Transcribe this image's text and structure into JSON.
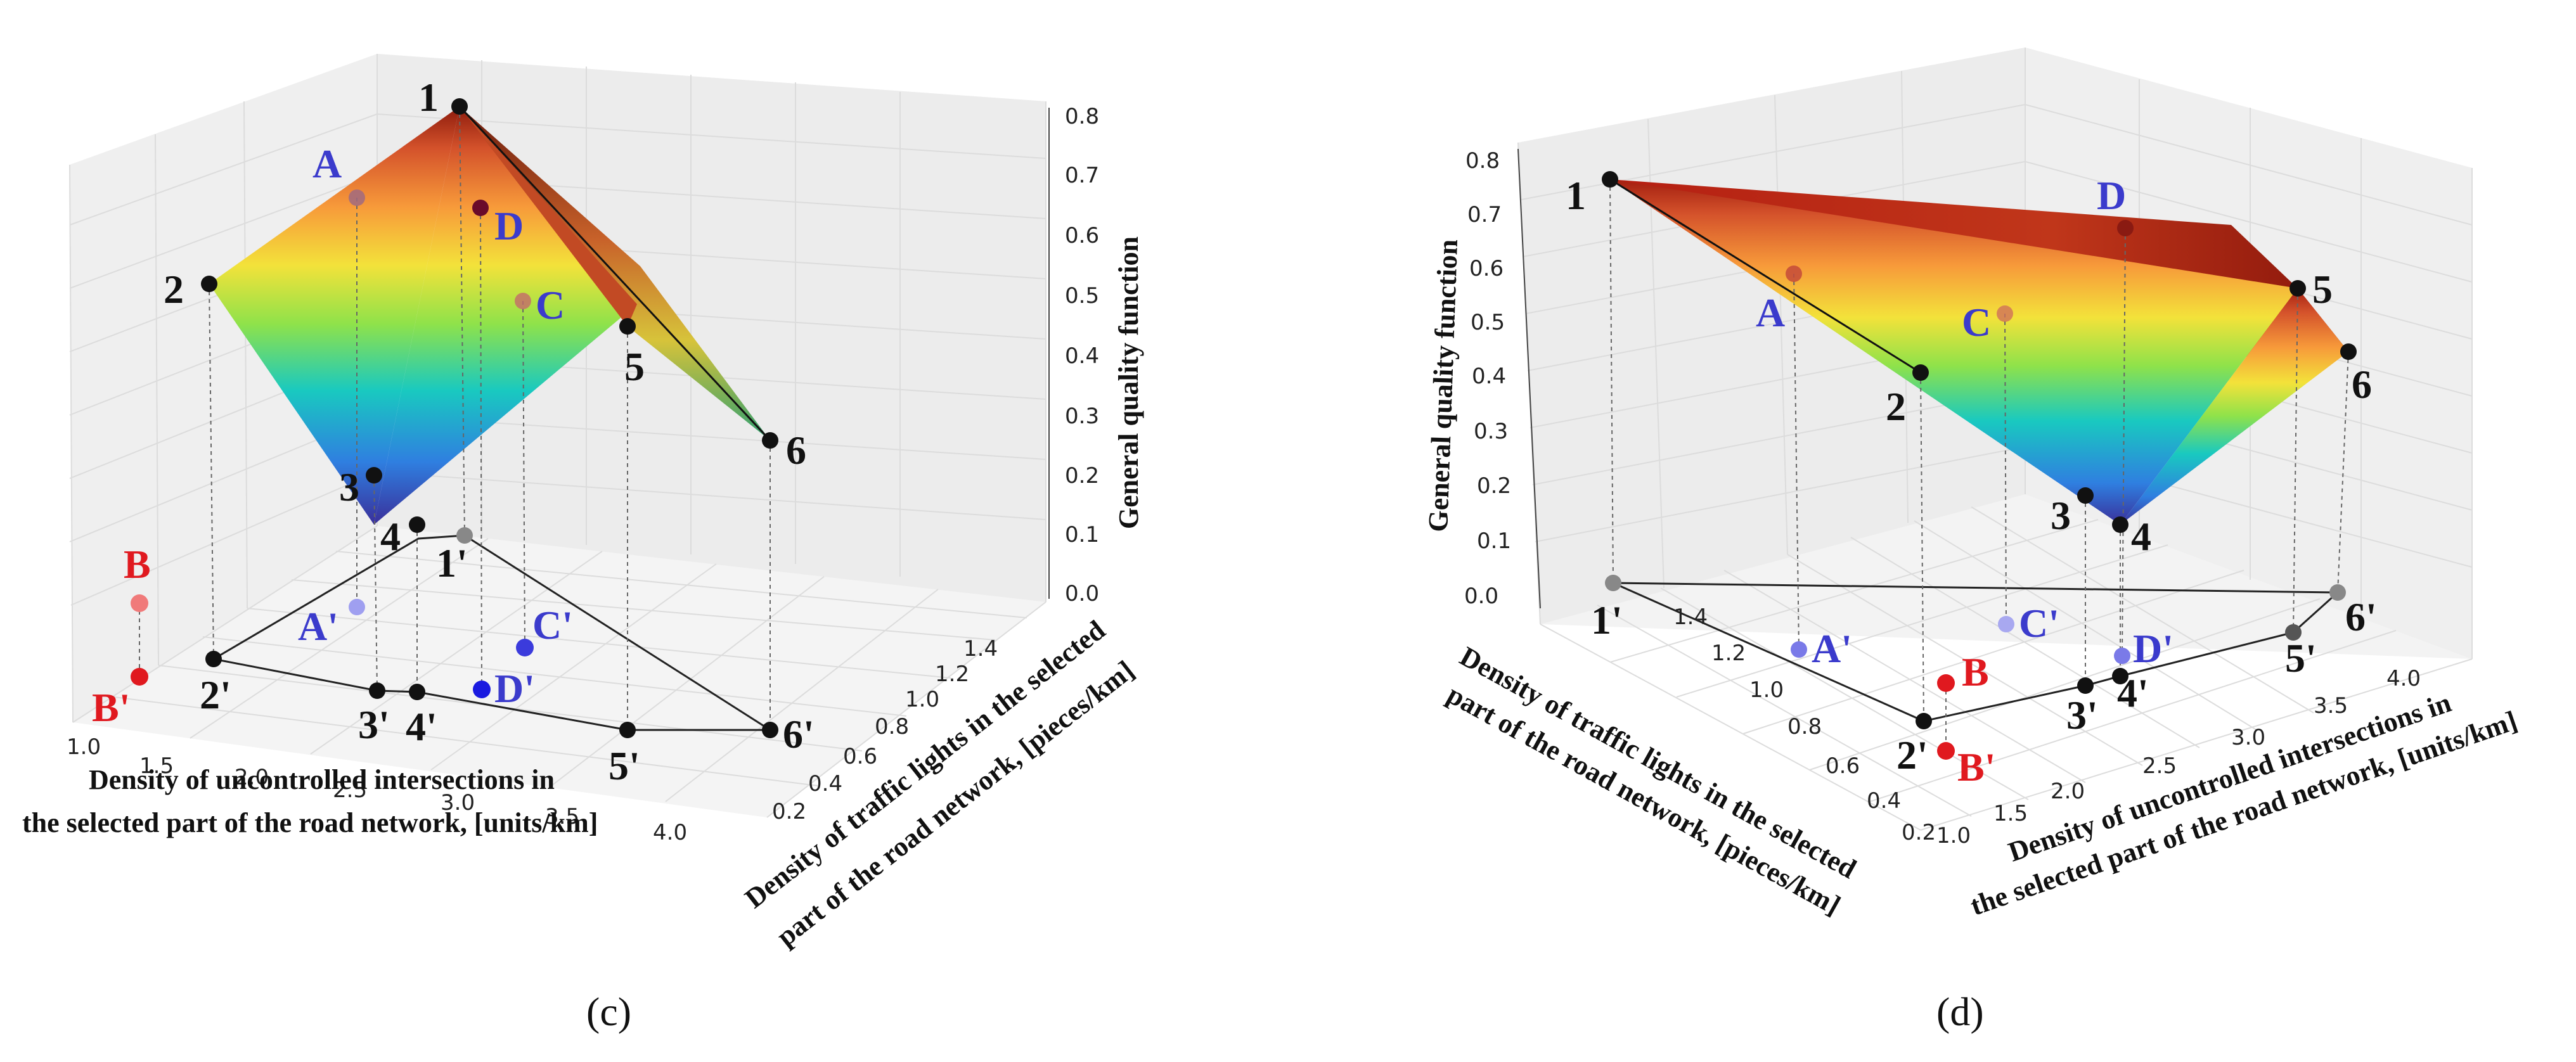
{
  "chart_data": [
    {
      "panel": "(c)",
      "type": "surface3d",
      "zlabel": "General quality function",
      "xlabel_lines": [
        "Density of uncontrolled intersections in",
        "the selected part of the road network, [units/km]"
      ],
      "ylabel_lines": [
        "Density of traffic lights in the selected",
        "part of the road network, [pieces/km]"
      ],
      "x_ticks": [
        "1.0",
        "1.5",
        "2.0",
        "2.5",
        "3.0",
        "3.5",
        "4.0"
      ],
      "y_ticks": [
        "0.2",
        "0.4",
        "0.6",
        "0.8",
        "1.0",
        "1.2",
        "1.4"
      ],
      "z_ticks": [
        "0.0",
        "0.1",
        "0.2",
        "0.3",
        "0.4",
        "0.5",
        "0.6",
        "0.7",
        "0.8"
      ],
      "surface_points": [
        {
          "label": "1",
          "base_label": "1'"
        },
        {
          "label": "2",
          "base_label": "2'"
        },
        {
          "label": "3",
          "base_label": "3'"
        },
        {
          "label": "4",
          "base_label": "4'"
        },
        {
          "label": "5",
          "base_label": "5'"
        },
        {
          "label": "6",
          "base_label": "6'"
        }
      ],
      "test_points": [
        {
          "label": "A",
          "base_label": "A'"
        },
        {
          "label": "B",
          "base_label": "B'"
        },
        {
          "label": "C",
          "base_label": "C'"
        },
        {
          "label": "D",
          "base_label": "D'"
        }
      ]
    },
    {
      "panel": "(d)",
      "type": "surface3d",
      "zlabel": "General quality function",
      "xlabel_lines": [
        "Density of uncontrolled intersections in",
        "the selected part of the road network, [units/km]"
      ],
      "ylabel_lines": [
        "Density of traffic lights in the selected",
        "part of the road network, [pieces/km]"
      ],
      "x_ticks": [
        "1.0",
        "1.5",
        "2.0",
        "2.5",
        "3.0",
        "3.5",
        "4.0"
      ],
      "y_ticks": [
        "0.2",
        "0.4",
        "0.6",
        "0.8",
        "1.0",
        "1.2",
        "1.4"
      ],
      "z_ticks": [
        "0.0",
        "0.1",
        "0.2",
        "0.3",
        "0.4",
        "0.5",
        "0.6",
        "0.7",
        "0.8"
      ],
      "surface_points": [
        {
          "label": "1",
          "base_label": "1'"
        },
        {
          "label": "2",
          "base_label": "2'"
        },
        {
          "label": "3",
          "base_label": "3'"
        },
        {
          "label": "4",
          "base_label": "4'"
        },
        {
          "label": "5",
          "base_label": "5'"
        },
        {
          "label": "6",
          "base_label": "6'"
        }
      ],
      "test_points": [
        {
          "label": "A",
          "base_label": "A'"
        },
        {
          "label": "B",
          "base_label": "B'"
        },
        {
          "label": "C",
          "base_label": "C'"
        },
        {
          "label": "D",
          "base_label": "D'"
        }
      ]
    }
  ],
  "colors": {
    "surface_point": "#111111",
    "base_point": "#555555",
    "test_label": "#3b3bcc",
    "test_label_b": "#e0191f",
    "grid": "#d8d8d8"
  }
}
